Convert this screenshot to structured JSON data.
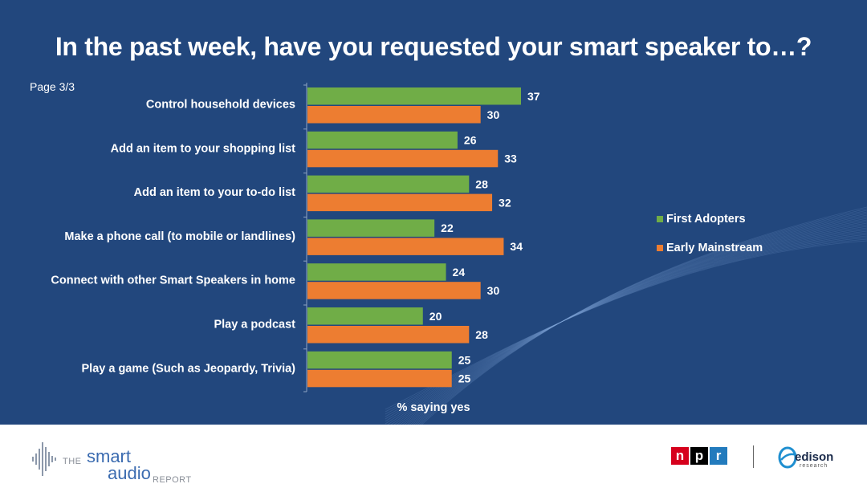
{
  "header": {
    "title": "In the past week, have you requested your smart speaker to…?",
    "page_label": "Page 3/3"
  },
  "chart_data": {
    "type": "bar",
    "orientation": "horizontal",
    "title": "In the past week, have you requested your smart speaker to…?",
    "xlabel": "% saying yes",
    "ylabel": "",
    "xlim": [
      0,
      40
    ],
    "categories": [
      "Control household devices",
      "Add an item to your shopping list",
      "Add an item to your to-do list",
      "Make a phone call (to mobile or landlines)",
      "Connect with other Smart Speakers in home",
      "Play a podcast",
      "Play a game (Such as Jeopardy, Trivia)"
    ],
    "series": [
      {
        "name": "First Adopters",
        "color": "#70ad47",
        "values": [
          37,
          26,
          28,
          22,
          24,
          20,
          25
        ]
      },
      {
        "name": "Early Mainstream",
        "color": "#ed7d31",
        "values": [
          30,
          33,
          32,
          34,
          30,
          28,
          25
        ]
      }
    ],
    "legend_position": "right"
  },
  "footer": {
    "logo_left": {
      "the": "THE",
      "smart": "smart",
      "audio": "audio",
      "report": "REPORT"
    },
    "npr_letters": [
      "n",
      "p",
      "r"
    ],
    "npr_colors": [
      "#d6001c",
      "#000000",
      "#237bbd"
    ],
    "edison_word": "edison",
    "edison_sub": "research"
  }
}
